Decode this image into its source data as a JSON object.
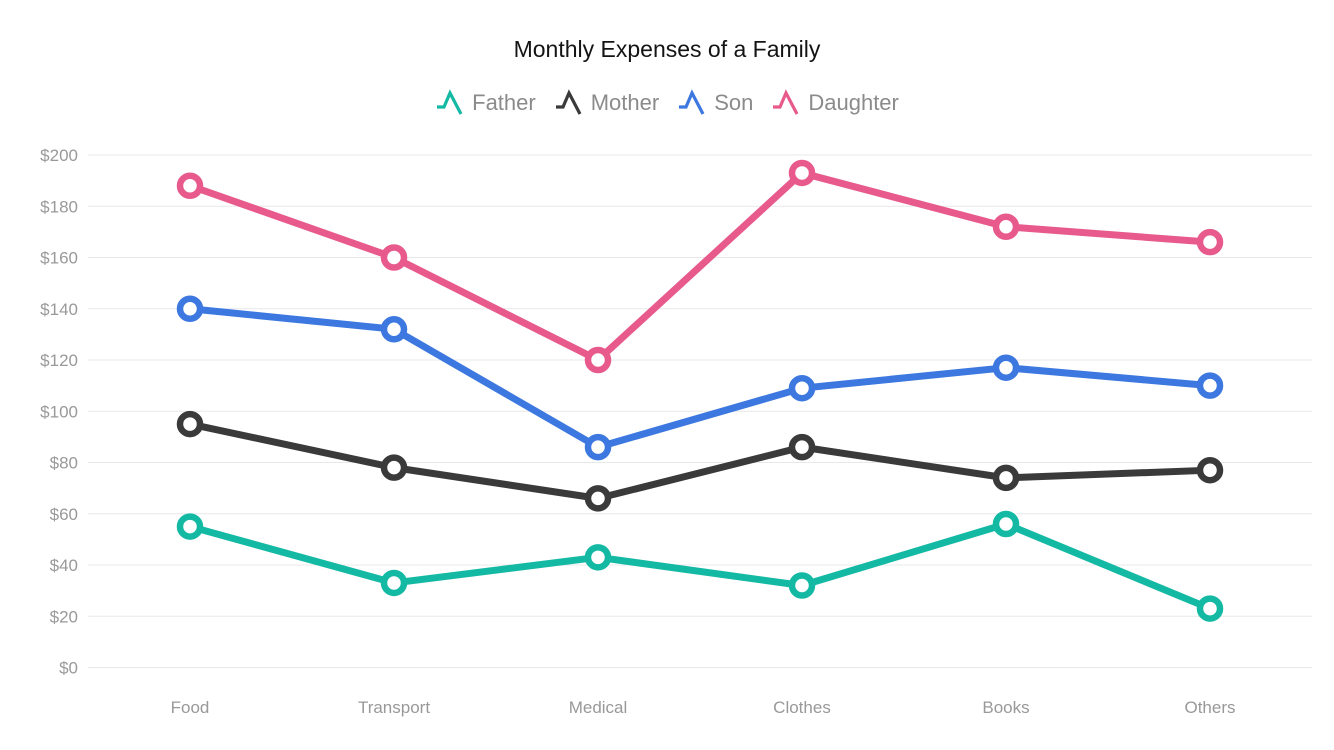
{
  "title": "Monthly Expenses of a Family",
  "chart_data": {
    "type": "line",
    "title": "Monthly Expenses of a Family",
    "categories": [
      "Food",
      "Transport",
      "Medical",
      "Clothes",
      "Books",
      "Others"
    ],
    "series": [
      {
        "name": "Father",
        "color": "#14b9a4",
        "values": [
          55,
          33,
          43,
          32,
          56,
          23
        ]
      },
      {
        "name": "Mother",
        "color": "#3a3a3a",
        "values": [
          95,
          78,
          66,
          86,
          74,
          77
        ]
      },
      {
        "name": "Son",
        "color": "#3c78e0",
        "values": [
          140,
          132,
          86,
          109,
          117,
          110
        ]
      },
      {
        "name": "Daughter",
        "color": "#e75a8b",
        "values": [
          188,
          160,
          120,
          193,
          172,
          166
        ]
      }
    ],
    "xlabel": "",
    "ylabel": "",
    "ylim": [
      0,
      200
    ],
    "y_tick_step": 20,
    "y_tick_labels": [
      "$0",
      "$20",
      "$40",
      "$60",
      "$80",
      "$100",
      "$120",
      "$140",
      "$160",
      "$180",
      "$200"
    ],
    "grid": true,
    "legend_position": "top",
    "marker_style": "open-circle"
  }
}
